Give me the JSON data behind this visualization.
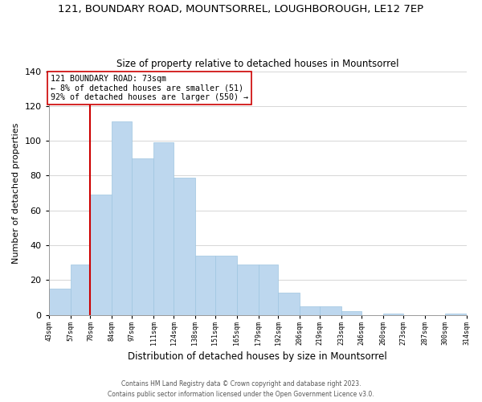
{
  "title_line1": "121, BOUNDARY ROAD, MOUNTSORREL, LOUGHBOROUGH, LE12 7EP",
  "title_line2": "Size of property relative to detached houses in Mountsorrel",
  "xlabel": "Distribution of detached houses by size in Mountsorrel",
  "ylabel": "Number of detached properties",
  "bar_edges": [
    43,
    57,
    70,
    84,
    97,
    111,
    124,
    138,
    151,
    165,
    179,
    192,
    206,
    219,
    233,
    246,
    260,
    273,
    287,
    300,
    314
  ],
  "bar_heights": [
    15,
    29,
    69,
    111,
    90,
    99,
    79,
    34,
    34,
    29,
    29,
    13,
    5,
    5,
    2,
    0,
    1,
    0,
    0,
    1
  ],
  "bar_color": "#bdd7ee",
  "bar_edge_color": "#9ec6e0",
  "property_line_x": 70,
  "property_line_color": "#cc0000",
  "annotation_line1": "121 BOUNDARY ROAD: 73sqm",
  "annotation_line2": "← 8% of detached houses are smaller (51)",
  "annotation_line3": "92% of detached houses are larger (550) →",
  "annotation_box_facecolor": "#ffffff",
  "annotation_box_edgecolor": "#cc0000",
  "ylim": [
    0,
    140
  ],
  "yticks": [
    0,
    20,
    40,
    60,
    80,
    100,
    120,
    140
  ],
  "footer_line1": "Contains HM Land Registry data © Crown copyright and database right 2023.",
  "footer_line2": "Contains public sector information licensed under the Open Government Licence v3.0.",
  "background_color": "#ffffff",
  "grid_color": "#d0d0d0",
  "tick_labels": [
    "43sqm",
    "57sqm",
    "70sqm",
    "84sqm",
    "97sqm",
    "111sqm",
    "124sqm",
    "138sqm",
    "151sqm",
    "165sqm",
    "179sqm",
    "192sqm",
    "206sqm",
    "219sqm",
    "233sqm",
    "246sqm",
    "260sqm",
    "273sqm",
    "287sqm",
    "300sqm",
    "314sqm"
  ]
}
